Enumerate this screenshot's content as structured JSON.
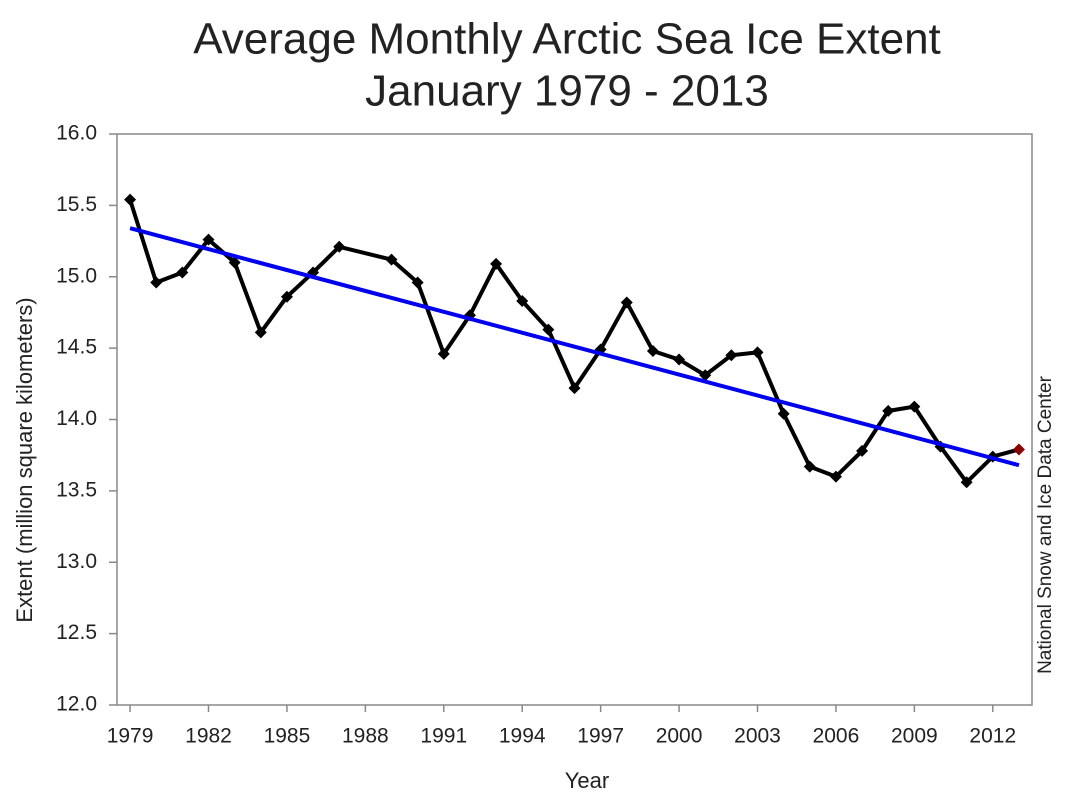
{
  "chart_data": {
    "type": "line",
    "title": "Average Monthly Arctic Sea Ice Extent",
    "subtitle": "January 1979 - 2013",
    "x_label": "Year",
    "y_label": "Extent (million square kilometers)",
    "source": "National Snow and Ice Data Center",
    "x": [
      1979,
      1980,
      1981,
      1982,
      1983,
      1984,
      1985,
      1986,
      1987,
      1989,
      1990,
      1991,
      1992,
      1993,
      1994,
      1995,
      1996,
      1997,
      1998,
      1999,
      2000,
      2001,
      2002,
      2003,
      2004,
      2005,
      2006,
      2007,
      2008,
      2009,
      2010,
      2011,
      2012,
      2013
    ],
    "series": [
      {
        "color": "#000000",
        "last_point_color": "#8b0000",
        "values": [
          15.54,
          14.96,
          15.03,
          15.26,
          15.1,
          14.61,
          14.86,
          15.03,
          15.21,
          15.12,
          14.96,
          14.46,
          14.73,
          15.09,
          14.83,
          14.63,
          14.22,
          14.49,
          14.82,
          14.48,
          14.42,
          14.31,
          14.45,
          14.47,
          14.04,
          13.67,
          13.6,
          13.78,
          14.06,
          14.09,
          13.81,
          13.56,
          13.74,
          13.79
        ]
      }
    ],
    "trend": {
      "color": "#0000ee",
      "x": [
        1979,
        2013
      ],
      "values": [
        15.34,
        13.68
      ]
    },
    "xlim": [
      1978.5,
      2013.5
    ],
    "xticks": [
      1979,
      1982,
      1985,
      1988,
      1991,
      1994,
      1997,
      2000,
      2003,
      2006,
      2009,
      2012
    ],
    "ylim": [
      12,
      16
    ],
    "yticks": [
      {
        "value": 12,
        "label": "12.0"
      },
      {
        "value": 12.5,
        "label": "12.5"
      },
      {
        "value": 13,
        "label": "13.0"
      },
      {
        "value": 13.5,
        "label": "13.5"
      },
      {
        "value": 14,
        "label": "14.0"
      },
      {
        "value": 14.5,
        "label": "14.5"
      },
      {
        "value": 15,
        "label": "15.0"
      },
      {
        "value": 15.5,
        "label": "15.5"
      },
      {
        "value": 16,
        "label": "16.0"
      }
    ],
    "grid": false
  }
}
